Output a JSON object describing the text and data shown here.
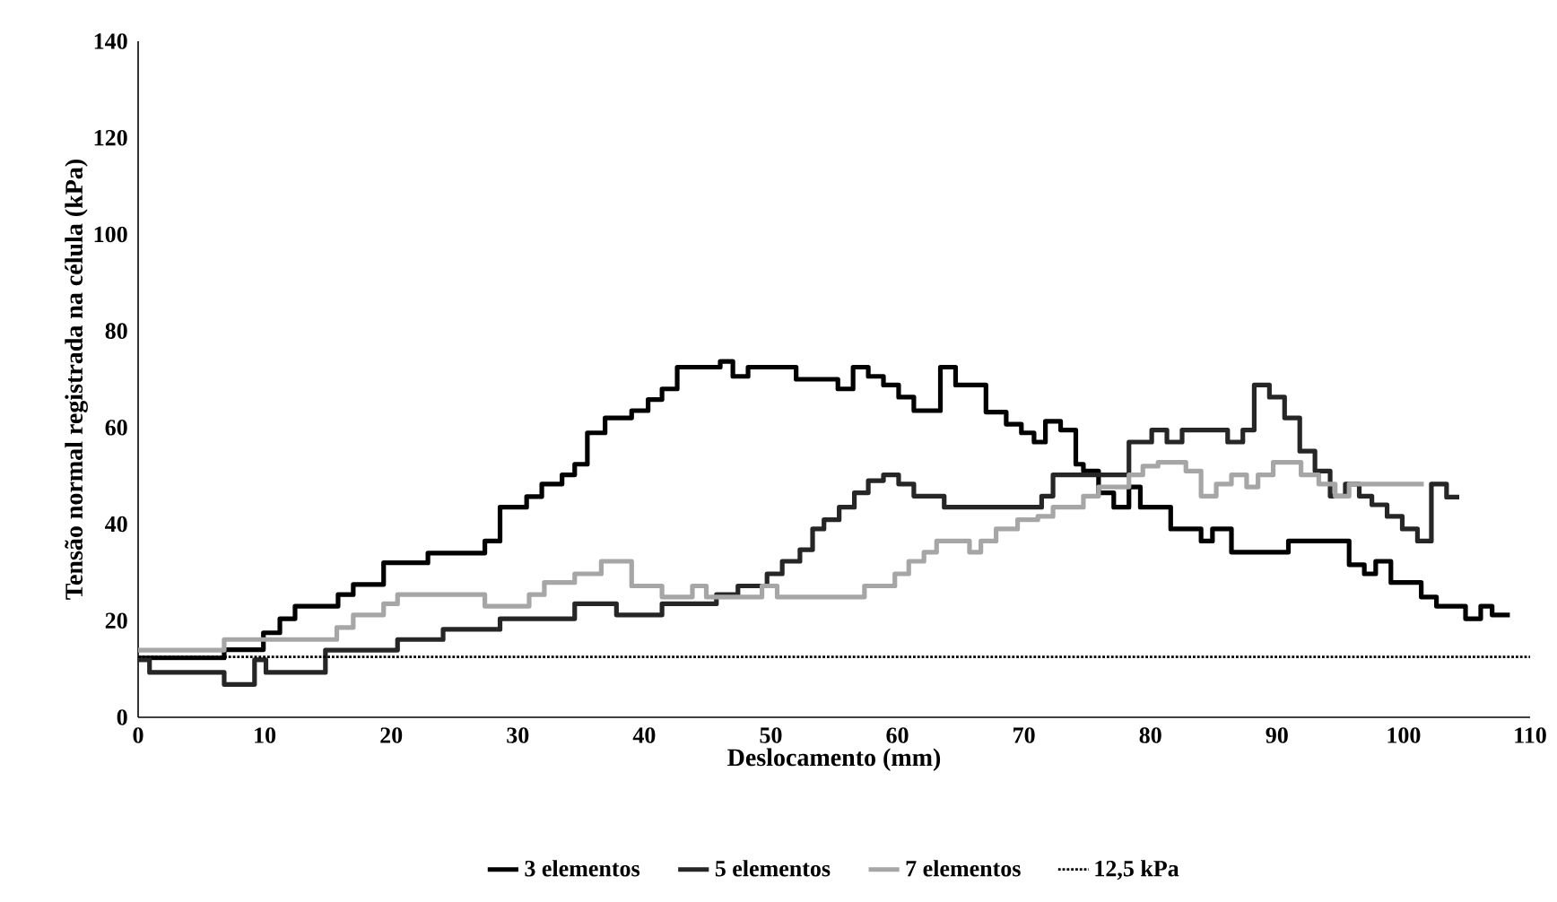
{
  "chart_data": {
    "type": "step",
    "xlabel": "Deslocamento (mm)",
    "ylabel": "Tensão normal registrada na célula (kPa)",
    "xlim": [
      0,
      110
    ],
    "xticks": [
      0,
      10,
      20,
      30,
      40,
      50,
      60,
      70,
      80,
      90,
      100,
      110
    ],
    "ylim": [
      0,
      140
    ],
    "yticks": [
      0,
      20,
      40,
      60,
      80,
      100,
      120,
      140
    ],
    "grid": false,
    "legend": "bottom",
    "line_style": "solid",
    "marker": "none",
    "series": [
      {
        "name": "3 elementos",
        "color": "#000000",
        "x": [
          0,
          6.8,
          9.9,
          11.2,
          12.4,
          15.8,
          17,
          19.4,
          22.9,
          27.4,
          28.6,
          30.7,
          31.9,
          33.5,
          34.5,
          35.5,
          36.9,
          39,
          40.3,
          41.4,
          42.6,
          46,
          47,
          48.2,
          52,
          55.3,
          56.5,
          57.7,
          58.9,
          60.1,
          61.3,
          63.4,
          64.6,
          67,
          68.6,
          69.8,
          70.8,
          71.7,
          72.9,
          74.1,
          74.7,
          75.9,
          77.1,
          78.3,
          79.2,
          81.6,
          84,
          84.9,
          86.4,
          90.9,
          95.7,
          96.9,
          97.8,
          99,
          101.4,
          102.6,
          104.9,
          106.1,
          107,
          108.4
        ],
        "values": [
          12.3,
          14,
          17.5,
          20.4,
          23,
          25.4,
          27.5,
          32,
          34,
          36.5,
          43.5,
          45.7,
          48.3,
          50.2,
          52.4,
          58.9,
          62,
          63.5,
          65.8,
          68,
          72.5,
          73.7,
          70.6,
          72.5,
          70,
          68,
          72.5,
          70.6,
          68.8,
          66.3,
          63.5,
          72.5,
          68.8,
          63.2,
          60.7,
          58.9,
          57,
          61.3,
          59.5,
          52.4,
          51,
          46.5,
          43.5,
          47.7,
          43.5,
          39,
          36.5,
          39,
          34.2,
          36.5,
          31.6,
          29.7,
          32.3,
          27.9,
          24.9,
          23,
          20.4,
          23,
          21.2,
          21.2
        ]
      },
      {
        "name": "5 elementos",
        "color": "#262626",
        "x": [
          0,
          0.9,
          6.8,
          9.2,
          10.1,
          14.8,
          20.5,
          24.1,
          28.6,
          34.5,
          37.8,
          41.4,
          45.7,
          47.4,
          49.7,
          50.9,
          52.3,
          53.3,
          54.2,
          55.4,
          56.6,
          57.7,
          58.9,
          60.1,
          61.3,
          63.7,
          71.4,
          72.3,
          78.3,
          80.1,
          81.3,
          82.5,
          86.1,
          87.3,
          88.2,
          89.4,
          90.6,
          91.8,
          93,
          94.2,
          95.4,
          96.5,
          97.5,
          98.7,
          99.9,
          101.1,
          102.2,
          103.4,
          104.4
        ],
        "values": [
          11.9,
          9.3,
          6.8,
          11.9,
          9.3,
          13.9,
          16.1,
          18.2,
          20.4,
          23.5,
          21.2,
          23.5,
          25.4,
          27.2,
          29.7,
          32.3,
          34.7,
          39,
          40.9,
          43.5,
          46.5,
          49,
          50.2,
          48.3,
          45.8,
          43.5,
          45.8,
          50.2,
          57,
          59.5,
          57,
          59.5,
          57,
          59.5,
          68.8,
          66.3,
          62,
          55.1,
          51,
          45.8,
          48.3,
          45.8,
          44,
          41.6,
          39,
          36.5,
          48.3,
          45.6,
          45.6
        ]
      },
      {
        "name": "7 elementos",
        "color": "#a6a6a6",
        "x": [
          0,
          6.8,
          15.7,
          17,
          19.4,
          20.5,
          27.4,
          30.9,
          32.1,
          34.5,
          36.6,
          39,
          41.4,
          43.8,
          44.9,
          49.3,
          50.5,
          57.4,
          59.8,
          60.9,
          62.1,
          63.1,
          65.7,
          66.6,
          67.8,
          69.5,
          71.1,
          72.3,
          74.7,
          75.9,
          78.3,
          79.4,
          80.6,
          82.8,
          84,
          85.2,
          86.4,
          87.6,
          88.5,
          89.7,
          91.9,
          93.3,
          94.6,
          95.7,
          101.6
        ],
        "values": [
          13.9,
          16.1,
          18.6,
          21.2,
          23.5,
          25.4,
          23,
          25.4,
          27.9,
          29.7,
          32.3,
          27.2,
          24.9,
          27.2,
          24.9,
          27.2,
          24.9,
          27.2,
          29.7,
          32.3,
          34.2,
          36.5,
          34.2,
          36.5,
          39,
          40.9,
          41.6,
          43.5,
          45.8,
          47.7,
          50.2,
          52,
          52.8,
          51,
          45.8,
          48.3,
          50.2,
          47.7,
          50.2,
          52.8,
          50.2,
          48.3,
          45.8,
          48.3,
          48.3
        ]
      }
    ],
    "ref_lines": [
      {
        "axis": "y",
        "value": 12.5,
        "label": "12,5 kPa",
        "color": "#000000",
        "line_style": "dotted"
      }
    ]
  }
}
